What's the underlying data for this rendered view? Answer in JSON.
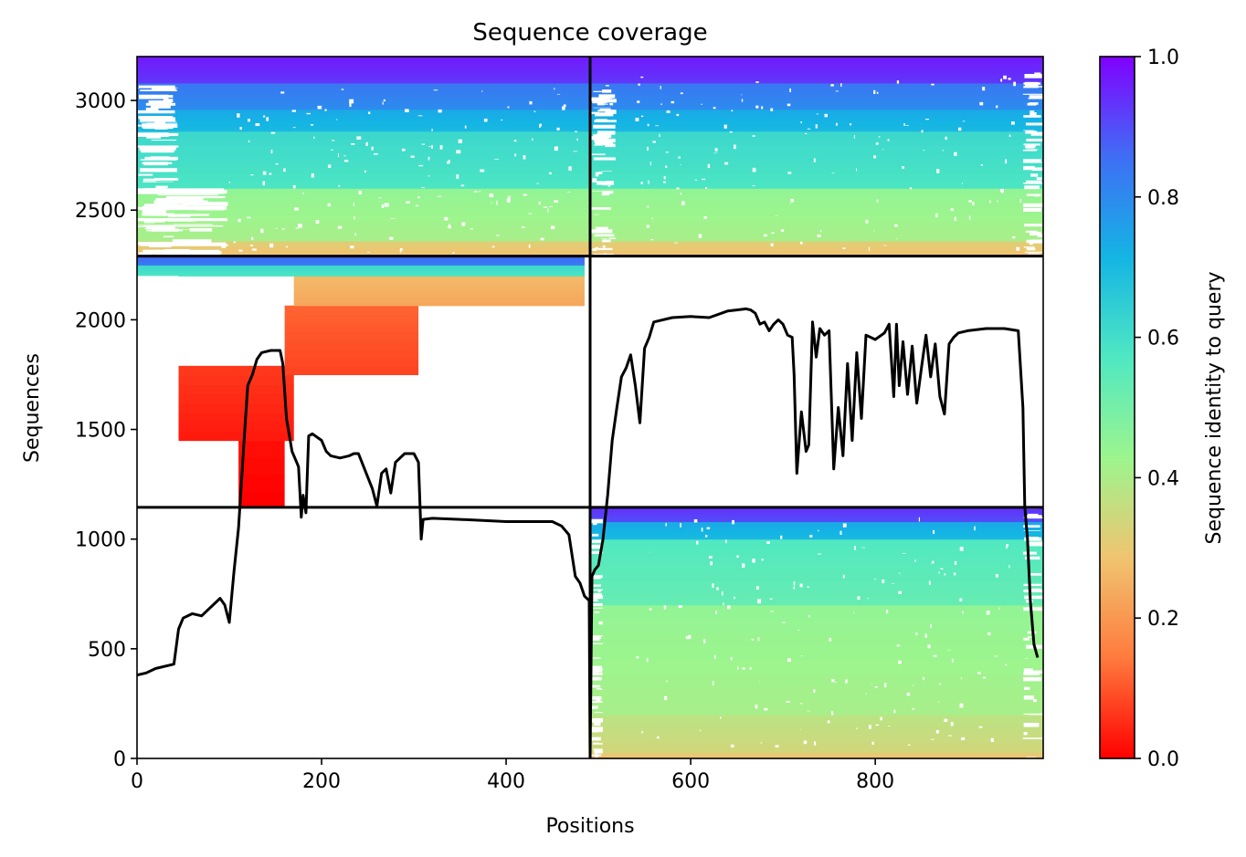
{
  "chart_data": {
    "type": "heatmap",
    "title": "Sequence coverage",
    "xlabel": "Positions",
    "ylabel": "Sequences",
    "colorbar_label": "Sequence identity to query",
    "xlim": [
      0,
      982
    ],
    "ylim": [
      0,
      3200
    ],
    "x_ticks": [
      0,
      200,
      400,
      600,
      800
    ],
    "x_tick_labels": [
      "0",
      "200",
      "400",
      "600",
      "800"
    ],
    "y_ticks": [
      0,
      500,
      1000,
      1500,
      2000,
      2500,
      3000
    ],
    "y_tick_labels": [
      "0",
      "500",
      "1000",
      "1500",
      "2000",
      "2500",
      "3000"
    ],
    "colorbar_ticks": [
      0.0,
      0.2,
      0.4,
      0.6,
      0.8,
      1.0
    ],
    "colorbar_tick_labels": [
      "0.0",
      "0.2",
      "0.4",
      "0.6",
      "0.8",
      "1.0"
    ],
    "colormap": "rainbow",
    "colormap_stops": [
      "#ff0000",
      "#ff7a3d",
      "#f0c470",
      "#9cf58e",
      "#4fe8c2",
      "#14b4e4",
      "#3f6ef5",
      "#8000ff"
    ],
    "domain_boundaries": {
      "x": [
        491
      ],
      "y": [
        1145,
        2290
      ]
    },
    "blocks": [
      {
        "name": "chain2 (lower right)",
        "x_range": [
          491,
          982
        ],
        "y_range": [
          0,
          1145
        ],
        "identity_bands": [
          {
            "y": [
              0,
              30
            ],
            "identity": 0.3
          },
          {
            "y": [
              30,
              200
            ],
            "identity": 0.36
          },
          {
            "y": [
              200,
              700
            ],
            "identity": 0.43
          },
          {
            "y": [
              700,
              1000
            ],
            "identity": 0.55
          },
          {
            "y": [
              1000,
              1080
            ],
            "identity": 0.72
          },
          {
            "y": [
              1080,
              1145
            ],
            "identity": 0.92
          }
        ]
      },
      {
        "name": "chain1 (middle left)",
        "x_range": [
          0,
          491
        ],
        "y_range": [
          1145,
          2290
        ],
        "identity_bands": [
          {
            "y": [
              1145,
              1750
            ],
            "x": [
              110,
              160
            ],
            "identity": 0.02
          },
          {
            "y": [
              1450,
              1790
            ],
            "x": [
              45,
              170
            ],
            "identity": 0.05
          },
          {
            "y": [
              1750,
              2065
            ],
            "x": [
              160,
              305
            ],
            "identity": 0.1
          },
          {
            "y": [
              2065,
              2200
            ],
            "x": [
              170,
              485
            ],
            "identity": 0.25
          },
          {
            "y": [
              2200,
              2250
            ],
            "x": [
              0,
              485
            ],
            "identity": 0.6
          },
          {
            "y": [
              2250,
              2290
            ],
            "x": [
              0,
              485
            ],
            "identity": 0.85
          }
        ]
      },
      {
        "name": "paired (top)",
        "x_range": [
          0,
          982
        ],
        "y_range": [
          2290,
          3200
        ],
        "identity_bands": [
          {
            "y": [
              2290,
              2360
            ],
            "identity": 0.3
          },
          {
            "y": [
              2360,
              2600
            ],
            "identity": 0.43
          },
          {
            "y": [
              2600,
              2860
            ],
            "identity": 0.6
          },
          {
            "y": [
              2860,
              2960
            ],
            "identity": 0.72
          },
          {
            "y": [
              2960,
              3080
            ],
            "identity": 0.82
          },
          {
            "y": [
              3080,
              3200
            ],
            "identity": 0.95
          }
        ]
      }
    ],
    "coverage_line": {
      "x": [
        0,
        10,
        20,
        40,
        45,
        50,
        60,
        70,
        80,
        85,
        90,
        95,
        100,
        105,
        110,
        112,
        116,
        120,
        125,
        130,
        135,
        140,
        145,
        155,
        158,
        162,
        168,
        175,
        178,
        180,
        183,
        186,
        190,
        200,
        205,
        210,
        220,
        230,
        235,
        240,
        255,
        260,
        265,
        270,
        275,
        280,
        285,
        290,
        300,
        305,
        308,
        310,
        320,
        350,
        400,
        450,
        460,
        468,
        475,
        480,
        485,
        490,
        491,
        493,
        496,
        500,
        505,
        510,
        515,
        520,
        525,
        530,
        535,
        540,
        545,
        550,
        555,
        560,
        580,
        600,
        620,
        640,
        650,
        660,
        665,
        670,
        675,
        680,
        685,
        690,
        695,
        700,
        705,
        710,
        712,
        715,
        720,
        725,
        728,
        732,
        736,
        740,
        745,
        750,
        755,
        760,
        765,
        770,
        775,
        780,
        785,
        790,
        800,
        810,
        815,
        820,
        823,
        826,
        830,
        835,
        840,
        845,
        850,
        855,
        860,
        865,
        870,
        875,
        880,
        885,
        890,
        900,
        920,
        940,
        955,
        960,
        962,
        965,
        968,
        972,
        976,
        980
      ],
      "y": [
        380,
        390,
        410,
        430,
        590,
        640,
        660,
        650,
        690,
        710,
        730,
        700,
        620,
        850,
        1050,
        1180,
        1450,
        1700,
        1750,
        1820,
        1850,
        1855,
        1860,
        1860,
        1800,
        1550,
        1400,
        1330,
        1100,
        1200,
        1120,
        1470,
        1480,
        1450,
        1400,
        1380,
        1370,
        1380,
        1390,
        1390,
        1230,
        1150,
        1300,
        1320,
        1210,
        1350,
        1370,
        1390,
        1390,
        1350,
        1000,
        1090,
        1095,
        1090,
        1080,
        1080,
        1060,
        1020,
        830,
        800,
        740,
        720,
        0,
        830,
        860,
        880,
        1000,
        1200,
        1450,
        1600,
        1740,
        1780,
        1840,
        1700,
        1530,
        1870,
        1920,
        1990,
        2010,
        2015,
        2010,
        2040,
        2045,
        2050,
        2045,
        2030,
        1980,
        1990,
        1950,
        1980,
        2000,
        1980,
        1930,
        1920,
        1750,
        1300,
        1580,
        1400,
        1430,
        1990,
        1830,
        1960,
        1930,
        1950,
        1320,
        1600,
        1380,
        1800,
        1450,
        1850,
        1550,
        1930,
        1910,
        1940,
        1980,
        1650,
        1980,
        1700,
        1900,
        1660,
        1880,
        1620,
        1780,
        1930,
        1740,
        1890,
        1650,
        1570,
        1890,
        1920,
        1940,
        1950,
        1960,
        1960,
        1950,
        1600,
        1150,
        1000,
        720,
        520,
        460
      ]
    }
  }
}
